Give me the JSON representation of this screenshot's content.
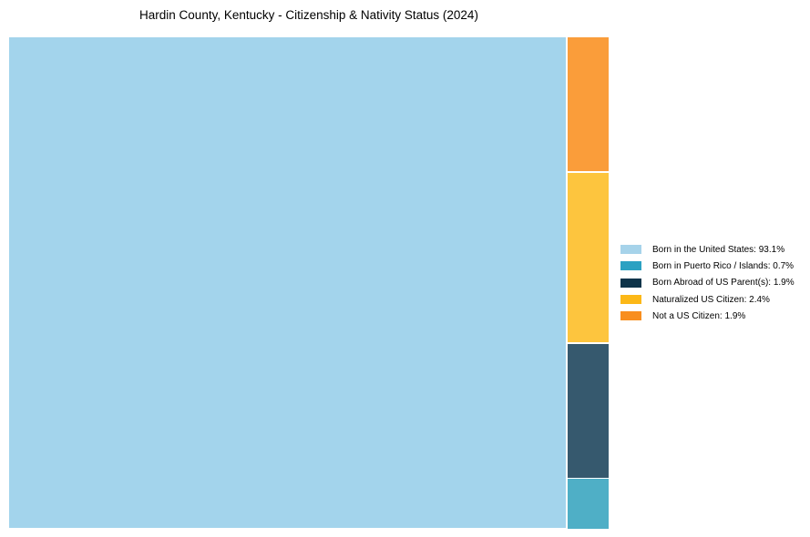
{
  "title": "Hardin County, Kentucky - Citizenship & Nativity Status (2024)",
  "chart_data": {
    "type": "treemap",
    "title": "Hardin County, Kentucky - Citizenship & Nativity Status (2024)",
    "items": [
      {
        "label": "Born in the United States",
        "value": 93.1,
        "pct_text": "93.1%",
        "tile_color": "#A3D4EC",
        "legend_color": "#A6D3EA",
        "legend_label": "Born in the United States: 93.1%"
      },
      {
        "label": "Born in Puerto Rico / Islands",
        "value": 0.7,
        "pct_text": "0.7%",
        "tile_color": "#4FAFC6",
        "legend_color": "#2BA1C2",
        "legend_label": "Born in Puerto Rico / Islands: 0.7%"
      },
      {
        "label": "Born Abroad of US Parent(s)",
        "value": 1.9,
        "pct_text": "1.9%",
        "tile_color": "#36596E",
        "legend_color": "#0E344A",
        "legend_label": "Born Abroad of US Parent(s): 1.9%"
      },
      {
        "label": "Naturalized US Citizen",
        "value": 2.4,
        "pct_text": "2.4%",
        "tile_color": "#FDC53E",
        "legend_color": "#FCB817",
        "legend_label": "Naturalized US Citizen: 2.4%"
      },
      {
        "label": "Not a US Citizen",
        "value": 1.9,
        "pct_text": "1.9%",
        "tile_color": "#FA9D3A",
        "legend_color": "#F88E1E",
        "legend_label": "Not a US Citizen: 1.9%"
      }
    ],
    "layout": {
      "legend_position": "right",
      "grid": false,
      "big_tile_label": "Born in the United States",
      "column_top_to_bottom": [
        "Not a US Citizen",
        "Naturalized US Citizen",
        "Born Abroad of US Parent(s)",
        "Born in Puerto Rico / Islands"
      ]
    }
  },
  "legend": {
    "items": [
      {
        "label": "Born in the United States: 93.1%"
      },
      {
        "label": "Born in Puerto Rico / Islands: 0.7%"
      },
      {
        "label": "Born Abroad of US Parent(s): 1.9%"
      },
      {
        "label": "Naturalized US Citizen: 2.4%"
      },
      {
        "label": "Not a US Citizen: 1.9%"
      }
    ]
  }
}
